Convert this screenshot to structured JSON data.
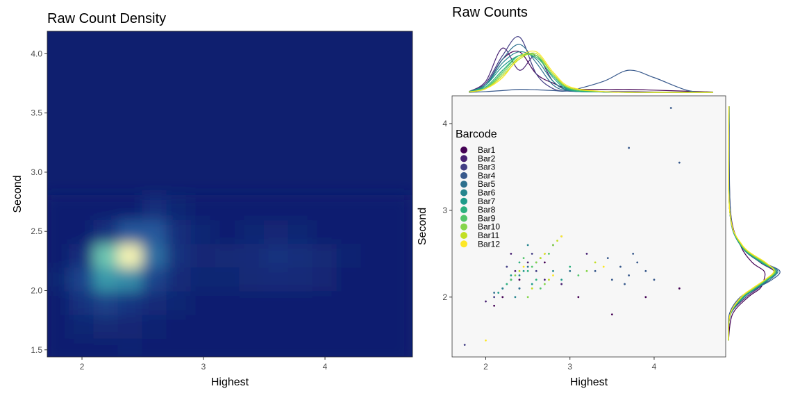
{
  "chart_data": [
    {
      "type": "heatmap",
      "title": "Raw Count Density",
      "x_label": "Highest",
      "y_label": "Second",
      "xlim": [
        1.714,
        4.72
      ],
      "ylim": [
        1.44,
        4.19
      ],
      "xticks": [
        2,
        3,
        4
      ],
      "yticks": [
        {
          "value": 1.5,
          "label": "1.5"
        },
        {
          "value": 2,
          "label": "2.0"
        },
        {
          "value": 2.5,
          "label": "2.5"
        },
        {
          "value": 3,
          "label": "3.0"
        },
        {
          "value": 3.5,
          "label": "3.5"
        },
        {
          "value": 4,
          "label": "4.0"
        }
      ],
      "colors": [
        "#0f1f6f",
        "#2a5fa0",
        "#3fb6b0",
        "#f6f4b4"
      ],
      "x": [
        1.8,
        2.0,
        2.2,
        2.4,
        2.6,
        2.8,
        3.0,
        3.2,
        3.4,
        3.6,
        3.8,
        4.0,
        4.2,
        4.4,
        4.6
      ],
      "y": [
        1.5,
        1.7,
        1.9,
        2.1,
        2.3,
        2.5,
        2.7
      ],
      "z": [
        [
          0,
          0,
          0,
          0.02,
          0,
          0,
          0,
          0,
          0,
          0,
          0,
          0,
          0,
          0,
          0
        ],
        [
          0,
          0.03,
          0.05,
          0.04,
          0.02,
          0,
          0,
          0,
          0,
          0,
          0,
          0,
          0,
          0,
          0
        ],
        [
          0,
          0.1,
          0.18,
          0.12,
          0.06,
          0.03,
          0,
          0,
          0,
          0,
          0,
          0,
          0,
          0,
          0
        ],
        [
          0.03,
          0.2,
          0.55,
          0.5,
          0.2,
          0.06,
          0.03,
          0.03,
          0.05,
          0.07,
          0.06,
          0.04,
          0,
          0,
          0
        ],
        [
          0,
          0.08,
          0.75,
          1,
          0.4,
          0.1,
          0.04,
          0.05,
          0.07,
          0.1,
          0.08,
          0.05,
          0.02,
          0,
          0
        ],
        [
          0,
          0,
          0.1,
          0.3,
          0.3,
          0.08,
          0.03,
          0,
          0.03,
          0.04,
          0.03,
          0,
          0,
          0,
          0
        ],
        [
          0,
          0,
          0,
          0,
          0.08,
          0.03,
          0,
          0,
          0,
          0,
          0,
          0,
          0,
          0,
          0
        ]
      ]
    },
    {
      "type": "scatter",
      "title": "Raw Counts",
      "x_label": "Highest",
      "y_label": "Second",
      "xlim": [
        1.6,
        4.85
      ],
      "ylim": [
        1.31,
        4.32
      ],
      "xticks": [
        2,
        3,
        4
      ],
      "yticks": [
        2,
        3,
        4
      ],
      "legend_title": "Barcode",
      "legend_position": "top-left",
      "density_lim": [
        0,
        1.6
      ],
      "top_x": [
        1.8,
        2.0,
        2.2,
        2.4,
        2.6,
        2.8,
        3.0,
        3.4,
        3.7,
        4.0,
        4.4,
        4.7
      ],
      "right_y": [
        1.5,
        1.8,
        2.0,
        2.1,
        2.2,
        2.3,
        2.4,
        2.6,
        3.0,
        4.2
      ],
      "series": [
        {
          "name": "Bar1",
          "color": "#440154",
          "x": [
            2.1,
            2.4,
            2.7,
            3.1,
            3.5,
            3.9,
            4.3,
            2.2
          ],
          "y": [
            1.9,
            2.2,
            2.4,
            2.0,
            1.8,
            2.0,
            2.1,
            2.0
          ],
          "top_density": [
            0.02,
            0.2,
            0.9,
            1.1,
            0.5,
            0.25,
            0.1,
            0.08,
            0.08,
            0.06,
            0.03,
            0.01
          ],
          "right_density": [
            0,
            0.1,
            0.5,
            0.8,
            0.9,
            0.9,
            0.6,
            0.3,
            0.05,
            0.01
          ]
        },
        {
          "name": "Bar2",
          "color": "#482173",
          "x": [
            2.0,
            2.2,
            2.35,
            2.5,
            2.7,
            2.9,
            3.2,
            2.3
          ],
          "y": [
            1.95,
            2.1,
            2.3,
            2.4,
            2.2,
            2.15,
            2.5,
            2.5
          ],
          "top_density": [
            0.02,
            0.3,
            1.2,
            0.6,
            1.0,
            0.3,
            0.05,
            0.02,
            0.02,
            0.01,
            0,
            0
          ],
          "right_density": [
            0,
            0.05,
            0.45,
            0.75,
            1.0,
            1.15,
            0.8,
            0.3,
            0.03,
            0.01
          ]
        },
        {
          "name": "Bar3",
          "color": "#433E85",
          "x": [
            2.1,
            2.3,
            2.4,
            2.55,
            2.6,
            2.25,
            2.8,
            1.75
          ],
          "y": [
            2.0,
            2.2,
            2.1,
            2.5,
            2.3,
            2.35,
            2.6,
            1.45
          ],
          "top_density": [
            0.02,
            0.25,
            1.0,
            1.5,
            0.5,
            0.1,
            0.03,
            0.01,
            0.01,
            0,
            0,
            0
          ],
          "right_density": [
            0,
            0.05,
            0.4,
            0.7,
            1.0,
            1.2,
            0.85,
            0.3,
            0.03,
            0.01
          ]
        },
        {
          "name": "Bar4",
          "color": "#38598C",
          "x": [
            3.3,
            3.5,
            3.6,
            3.7,
            3.8,
            3.9,
            4.0,
            3.65,
            3.75,
            3.45,
            4.2,
            2.9,
            3.7,
            4.3
          ],
          "y": [
            2.3,
            2.2,
            2.35,
            2.25,
            2.4,
            2.3,
            2.2,
            2.15,
            2.5,
            2.45,
            4.18,
            2.7,
            3.72,
            3.55
          ],
          "top_density": [
            0,
            0.02,
            0.05,
            0.08,
            0.07,
            0.05,
            0.05,
            0.3,
            0.6,
            0.4,
            0.05,
            0
          ],
          "right_density": [
            0,
            0.02,
            0.3,
            0.7,
            1.1,
            1.3,
            0.9,
            0.3,
            0.05,
            0.02
          ]
        },
        {
          "name": "Bar5",
          "color": "#2D708E",
          "x": [
            2.1,
            2.3,
            2.5,
            2.7,
            2.4,
            3.0
          ],
          "y": [
            2.05,
            2.2,
            2.35,
            2.5,
            2.1,
            2.3
          ],
          "top_density": [
            0.02,
            0.2,
            0.9,
            1.3,
            0.8,
            0.2,
            0.04,
            0.01,
            0,
            0,
            0,
            0
          ],
          "right_density": [
            0,
            0.05,
            0.4,
            0.72,
            1.05,
            1.22,
            0.82,
            0.3,
            0.03,
            0.01
          ]
        },
        {
          "name": "Bar6",
          "color": "#25858E",
          "x": [
            2.2,
            2.4,
            2.6,
            2.8,
            2.5,
            2.35
          ],
          "y": [
            2.1,
            2.25,
            2.4,
            2.3,
            2.6,
            2.0
          ],
          "top_density": [
            0.02,
            0.2,
            0.8,
            1.1,
            0.9,
            0.3,
            0.05,
            0.01,
            0,
            0,
            0,
            0
          ],
          "right_density": [
            0,
            0.05,
            0.38,
            0.7,
            1.0,
            1.25,
            0.85,
            0.3,
            0.03,
            0.01
          ]
        },
        {
          "name": "Bar7",
          "color": "#1E9B8A",
          "x": [
            2.15,
            2.45,
            2.65,
            2.9,
            2.55,
            2.3
          ],
          "y": [
            2.05,
            2.3,
            2.45,
            2.2,
            2.15,
            2.25
          ],
          "top_density": [
            0.02,
            0.2,
            0.7,
            1.0,
            1.0,
            0.4,
            0.06,
            0.01,
            0,
            0,
            0,
            0
          ],
          "right_density": [
            0,
            0.05,
            0.4,
            0.68,
            1.0,
            1.2,
            0.82,
            0.3,
            0.03,
            0.01
          ]
        },
        {
          "name": "Bar8",
          "color": "#2BB07F",
          "x": [
            2.25,
            2.5,
            2.7,
            3.0,
            2.6,
            2.4
          ],
          "y": [
            2.15,
            2.3,
            2.5,
            2.35,
            2.2,
            2.4
          ],
          "top_density": [
            0.02,
            0.15,
            0.6,
            1.0,
            0.95,
            0.45,
            0.08,
            0.01,
            0,
            0,
            0,
            0
          ],
          "right_density": [
            0,
            0.04,
            0.36,
            0.66,
            0.98,
            1.18,
            0.86,
            0.32,
            0.03,
            0.01
          ]
        },
        {
          "name": "Bar9",
          "color": "#51C56A",
          "x": [
            2.3,
            2.55,
            2.75,
            3.1,
            2.65,
            2.45
          ],
          "y": [
            2.2,
            2.35,
            2.5,
            2.25,
            2.1,
            2.45
          ],
          "top_density": [
            0.01,
            0.12,
            0.55,
            1.0,
            0.95,
            0.45,
            0.1,
            0.02,
            0,
            0,
            0,
            0
          ],
          "right_density": [
            0,
            0.04,
            0.35,
            0.65,
            0.95,
            1.2,
            0.88,
            0.32,
            0.03,
            0.01
          ]
        },
        {
          "name": "Bar10",
          "color": "#85D54A",
          "x": [
            2.35,
            2.6,
            2.8,
            3.2,
            2.7,
            2.5
          ],
          "y": [
            2.25,
            2.4,
            2.6,
            2.3,
            2.15,
            2.0
          ],
          "top_density": [
            0.01,
            0.1,
            0.5,
            0.95,
            1.0,
            0.5,
            0.12,
            0.02,
            0,
            0,
            0,
            0
          ],
          "right_density": [
            0,
            0.04,
            0.34,
            0.64,
            0.95,
            1.18,
            0.9,
            0.33,
            0.03,
            0.01
          ]
        },
        {
          "name": "Bar11",
          "color": "#C2DF23",
          "x": [
            2.4,
            2.65,
            2.85,
            3.3,
            2.75,
            2.55
          ],
          "y": [
            2.3,
            2.45,
            2.65,
            2.4,
            2.2,
            2.1
          ],
          "top_density": [
            0.01,
            0.1,
            0.45,
            0.9,
            1.05,
            0.5,
            0.12,
            0.02,
            0,
            0,
            0,
            0
          ],
          "right_density": [
            0,
            0.04,
            0.33,
            0.62,
            0.93,
            1.16,
            0.92,
            0.34,
            0.03,
            0.01
          ]
        },
        {
          "name": "Bar12",
          "color": "#FDE725",
          "x": [
            2.45,
            2.7,
            2.9,
            3.4,
            2.8,
            2.0
          ],
          "y": [
            2.35,
            2.5,
            2.7,
            2.35,
            2.25,
            1.5
          ],
          "top_density": [
            0.01,
            0.1,
            0.4,
            0.95,
            1.1,
            0.55,
            0.15,
            0.02,
            0,
            0,
            0,
            0
          ],
          "right_density": [
            0,
            0.04,
            0.32,
            0.6,
            0.92,
            1.15,
            0.94,
            0.35,
            0.03,
            0.01
          ]
        }
      ]
    }
  ]
}
